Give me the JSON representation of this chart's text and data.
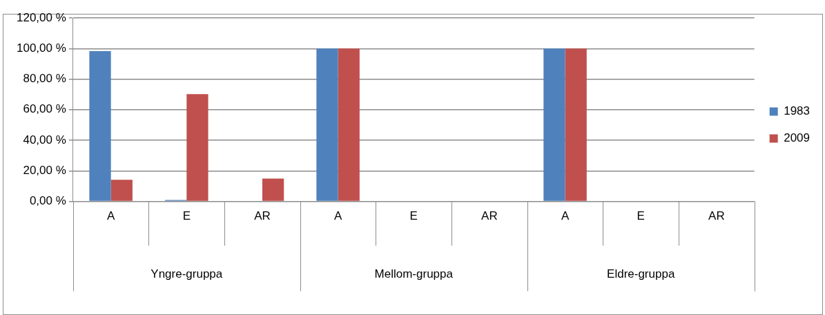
{
  "chart_data": {
    "type": "bar",
    "categories": [
      "A",
      "E",
      "AR",
      "A",
      "E",
      "AR",
      "A",
      "E",
      "AR"
    ],
    "series": [
      {
        "name": "1983",
        "color": "#4f81bd",
        "values": [
          98.3,
          1.0,
          0,
          100,
          0,
          0,
          100,
          0,
          0
        ]
      },
      {
        "name": "2009",
        "color": "#c0504d",
        "values": [
          14.2,
          70.2,
          15.0,
          100,
          0,
          0,
          100,
          0,
          0
        ]
      }
    ],
    "ylim": [
      0,
      120
    ],
    "yticks": [
      {
        "value": 0,
        "label": "0,00 %"
      },
      {
        "value": 20,
        "label": "20,00 %"
      },
      {
        "value": 40,
        "label": "40,00 %"
      },
      {
        "value": 60,
        "label": "60,00 %"
      },
      {
        "value": 80,
        "label": "80,00 %"
      },
      {
        "value": 100,
        "label": "100,00 %"
      },
      {
        "value": 120,
        "label": "120,00 %"
      }
    ],
    "annotations": [
      "Yngre-gruppa",
      "Mellom-gruppa",
      "Eldre-gruppa"
    ],
    "grid": "y",
    "legend": "right"
  }
}
